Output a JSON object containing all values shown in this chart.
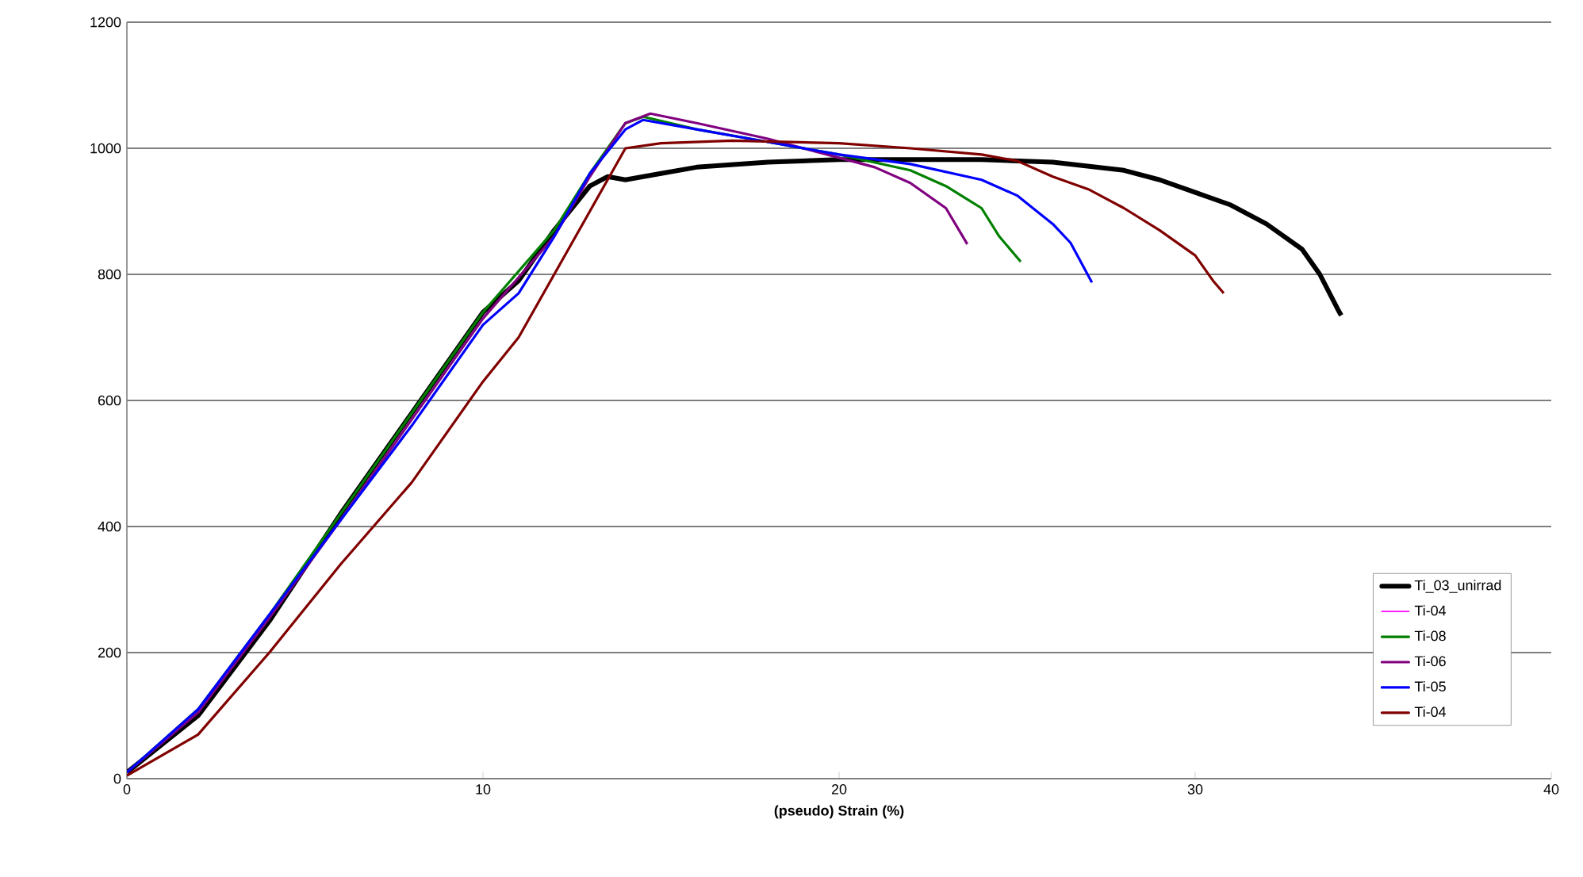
{
  "chart_data": {
    "type": "line",
    "xlabel": "(pseudo) Strain (%)",
    "xlim": [
      0,
      40
    ],
    "xticks": [
      0,
      10,
      20,
      30,
      40
    ],
    "ylim": [
      0,
      1200
    ],
    "yticks": [
      0,
      200,
      400,
      600,
      800,
      1000,
      1200
    ],
    "grid": "y",
    "legend": "bottom right",
    "marker": "none",
    "line_style": "solid",
    "series": [
      {
        "name": "Ti_03_unirrad",
        "color": "#000000",
        "x": [
          0,
          2,
          4,
          6,
          8,
          10,
          11,
          12,
          13,
          13.5,
          14,
          15,
          16,
          18,
          20,
          24,
          26,
          28,
          29,
          30,
          31,
          32,
          33,
          33.5,
          34,
          34.1
        ],
        "values": [
          10,
          100,
          250,
          420,
          580,
          740,
          790,
          870,
          940,
          955,
          950,
          960,
          970,
          978,
          982,
          982,
          978,
          965,
          950,
          930,
          910,
          880,
          840,
          800,
          745,
          735
        ]
      },
      {
        "name": "Ti-04",
        "color": "#ff00ff"
      },
      {
        "name": "Ti-08",
        "color": "#008000",
        "x": [
          0,
          2,
          4,
          6,
          8,
          10,
          12,
          13,
          14,
          14.5,
          16,
          18,
          20,
          22,
          23,
          24,
          24.5,
          25.1
        ],
        "values": [
          10,
          110,
          260,
          420,
          580,
          740,
          870,
          960,
          1040,
          1050,
          1030,
          1010,
          990,
          965,
          940,
          905,
          860,
          820
        ]
      },
      {
        "name": "Ti-06",
        "color": "#800080",
        "x": [
          0,
          2,
          4,
          6,
          8,
          10,
          12,
          13,
          14,
          14.7,
          16,
          18,
          20,
          21,
          22,
          23,
          23.6
        ],
        "values": [
          10,
          105,
          255,
          410,
          570,
          730,
          860,
          955,
          1040,
          1055,
          1040,
          1015,
          985,
          970,
          945,
          905,
          848
        ]
      },
      {
        "name": "Ti-05",
        "color": "#0000ff",
        "x": [
          0,
          2,
          4,
          6,
          8,
          10,
          11,
          12,
          13,
          14,
          14.5,
          16,
          18,
          20,
          22,
          24,
          25,
          26,
          26.5,
          27.1
        ],
        "values": [
          10,
          110,
          260,
          410,
          560,
          720,
          770,
          860,
          960,
          1030,
          1045,
          1030,
          1010,
          990,
          975,
          950,
          925,
          880,
          850,
          787
        ]
      },
      {
        "name": "Ti-04",
        "color": "#800000",
        "x": [
          0,
          2,
          4,
          6,
          8,
          10,
          11,
          12,
          13,
          13.5,
          14,
          15,
          17,
          20,
          22,
          24,
          25,
          26,
          27,
          28,
          29,
          30,
          30.5,
          30.8
        ],
        "values": [
          5,
          70,
          200,
          340,
          470,
          630,
          700,
          800,
          900,
          950,
          1000,
          1008,
          1012,
          1008,
          1000,
          990,
          980,
          955,
          935,
          905,
          870,
          830,
          790,
          770
        ]
      }
    ]
  }
}
